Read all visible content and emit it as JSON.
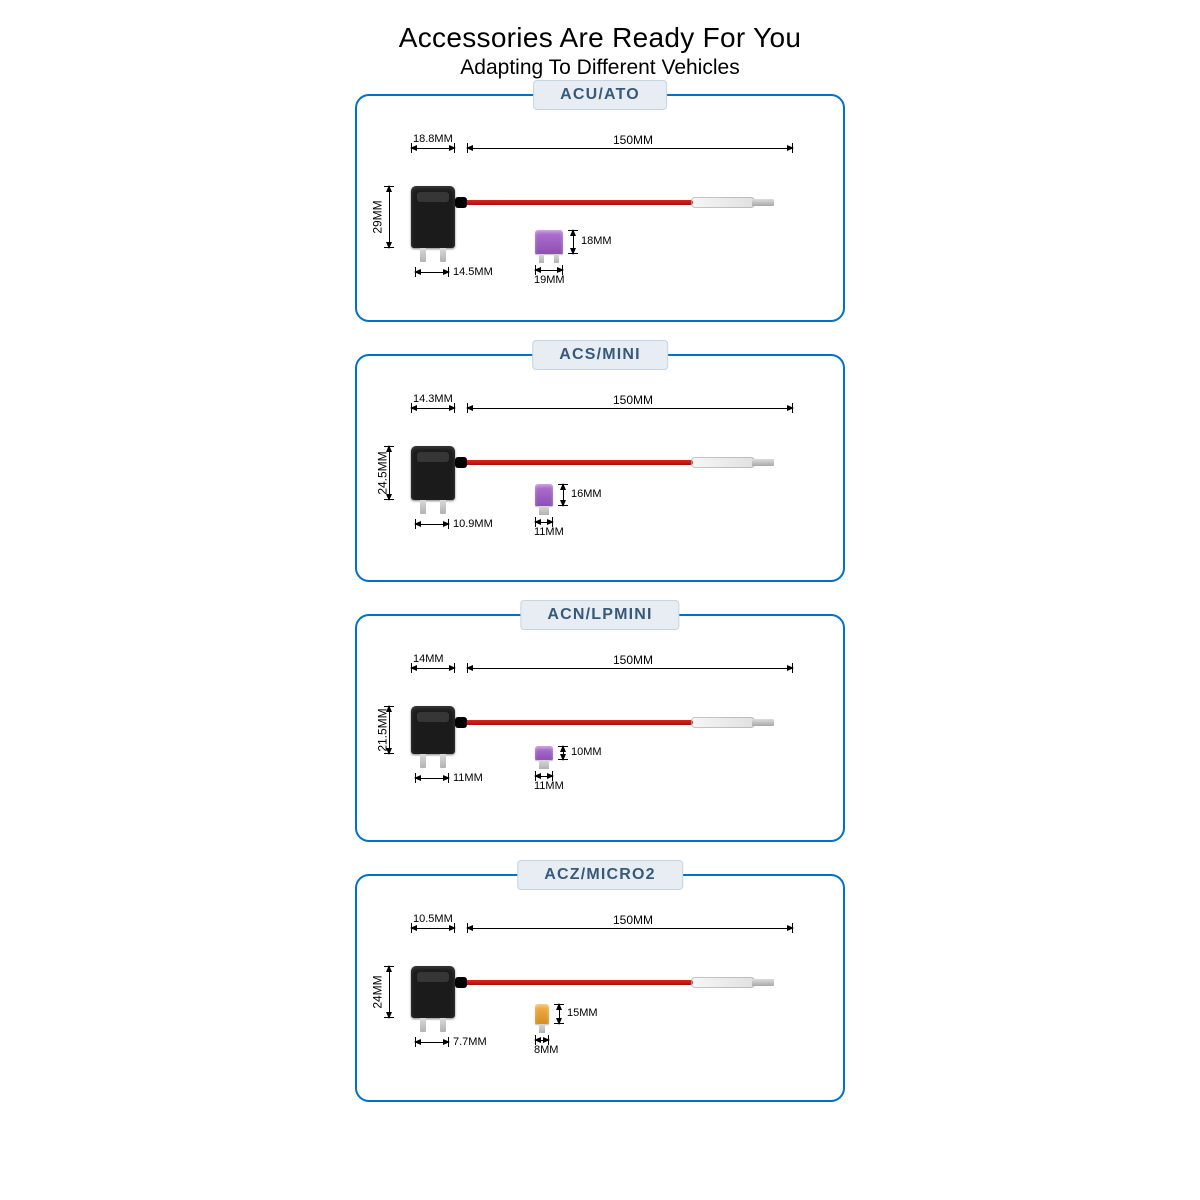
{
  "header": {
    "title": "Accessories Are Ready For You",
    "subtitle": "Adapting To Different Vehicles"
  },
  "colors": {
    "panel_border": "#0070c8",
    "wire": "#d31a14",
    "tap_body": "#1b1b1b",
    "fuse_purple": "#9a5cc0",
    "fuse_orange": "#e6a23c",
    "tag_bg": "#e7edf3",
    "tag_border": "#c5d5e4",
    "tag_text": "#375a7b"
  },
  "panels": [
    {
      "tag": "ACU/ATO",
      "total_length": "150MM",
      "tap_width_top": "18.8MM",
      "tap_height": "29MM",
      "prong_span": "14.5MM",
      "fuse_height": "18MM",
      "fuse_width": "19MM",
      "fuse_color": "purple",
      "tap_relative_h": 62,
      "fuse_relative_w": 28,
      "fuse_relative_h": 24
    },
    {
      "tag": "ACS/MINI",
      "total_length": "150MM",
      "tap_width_top": "14.3MM",
      "tap_height": "24.5MM",
      "prong_span": "10.9MM",
      "fuse_height": "16MM",
      "fuse_width": "11MM",
      "fuse_color": "purple",
      "tap_relative_h": 54,
      "fuse_relative_w": 18,
      "fuse_relative_h": 22
    },
    {
      "tag": "ACN/LPMINI",
      "total_length": "150MM",
      "tap_width_top": "14MM",
      "tap_height": "21.5MM",
      "prong_span": "11MM",
      "fuse_height": "10MM",
      "fuse_width": "11MM",
      "fuse_color": "purple",
      "tap_relative_h": 48,
      "fuse_relative_w": 18,
      "fuse_relative_h": 14
    },
    {
      "tag": "ACZ/MICRO2",
      "total_length": "150MM",
      "tap_width_top": "10.5MM",
      "tap_height": "24MM",
      "prong_span": "7.7MM",
      "fuse_height": "15MM",
      "fuse_width": "8MM",
      "fuse_color": "orange",
      "tap_relative_h": 52,
      "fuse_relative_w": 14,
      "fuse_relative_h": 20
    }
  ]
}
